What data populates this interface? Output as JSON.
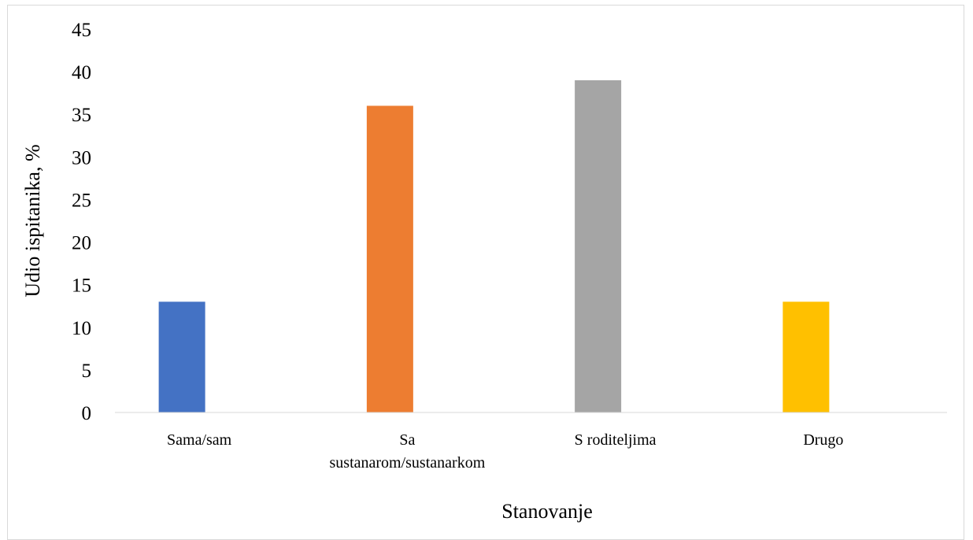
{
  "chart_data": {
    "type": "bar",
    "categories": [
      "Sama/sam",
      "Sa sustanarom/sustanarkom",
      "S roditeljima",
      "Drugo"
    ],
    "category_label_lines": [
      [
        "Sama/sam"
      ],
      [
        "Sa",
        "sustanarom/sustanarkom"
      ],
      [
        "S roditeljima"
      ],
      [
        "Drugo"
      ]
    ],
    "values": [
      13,
      36,
      39,
      13
    ],
    "colors": [
      "#4472c4",
      "#ed7d31",
      "#a5a5a5",
      "#ffc000"
    ],
    "title": "",
    "xlabel": "Stanovanje",
    "ylabel": "Udio ispitanika, %",
    "ylim": [
      0,
      45
    ],
    "yticks": [
      0,
      5,
      10,
      15,
      20,
      25,
      30,
      35,
      40,
      45
    ],
    "grid": false,
    "legend": "none"
  }
}
